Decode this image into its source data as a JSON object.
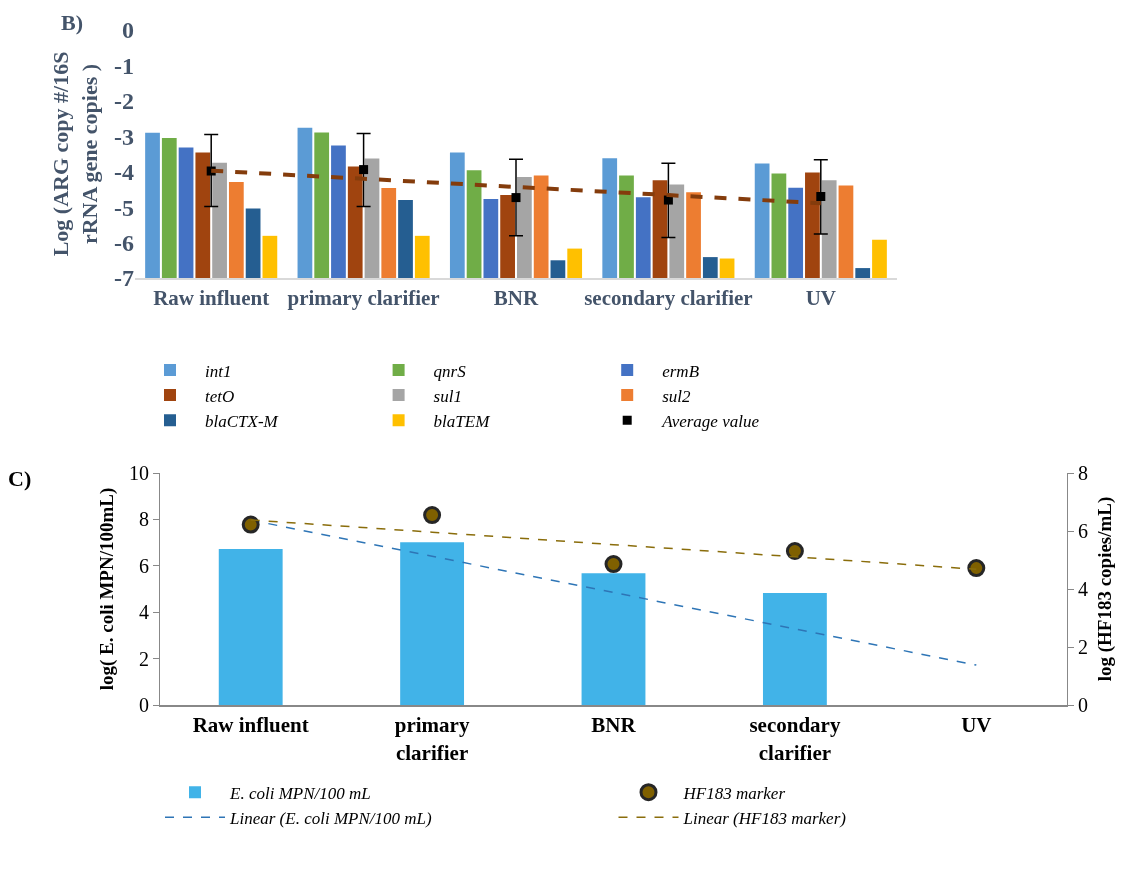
{
  "chart_data": [
    {
      "type": "bar",
      "annotations": [
        "B)"
      ],
      "ylabel": "Log (ARG copy #/16S rRNA gene copies )",
      "categories": [
        "Raw influent",
        "primary clarifier",
        "BNR",
        "secondary clarifier",
        "UV"
      ],
      "ylim": [
        -7,
        0
      ],
      "yticks": [
        -7,
        -6,
        -5,
        -4,
        -3,
        -2,
        -1,
        0
      ],
      "legend": "bottom",
      "series": [
        {
          "name": "int1",
          "color": "#5b9bd5",
          "base": [
            -7,
            -7,
            -7,
            -7,
            -7
          ],
          "values": [
            4.1,
            4.24,
            3.54,
            3.38,
            3.23
          ]
        },
        {
          "name": "qnrS",
          "color": "#70ad47",
          "base": [
            -7,
            -7,
            -7,
            -7,
            -7
          ],
          "values": [
            3.95,
            4.11,
            3.04,
            2.89,
            2.95
          ]
        },
        {
          "name": "ermB",
          "color": "#4472c4",
          "base": [
            -7,
            -7,
            -7,
            -7,
            -7
          ],
          "values": [
            3.68,
            3.74,
            2.23,
            2.28,
            2.55
          ]
        },
        {
          "name": "tetO",
          "color": "#a0440f",
          "base": [
            -7,
            -7,
            -7,
            -7,
            -7
          ],
          "values": [
            3.54,
            3.15,
            2.34,
            2.76,
            2.98
          ]
        },
        {
          "name": "sul1",
          "color": "#a5a5a5",
          "base": [
            -7,
            -7,
            -7,
            -7,
            -7
          ],
          "values": [
            3.25,
            3.37,
            2.85,
            2.64,
            2.76
          ]
        },
        {
          "name": "sul2",
          "color": "#ed7d31",
          "base": [
            -7,
            -7,
            -7,
            -7,
            -7
          ],
          "values": [
            2.71,
            2.54,
            2.89,
            2.42,
            2.61
          ]
        },
        {
          "name": "blaCTX-M",
          "color": "#255e91",
          "base": [
            -7,
            -7,
            -7,
            -7,
            -7
          ],
          "values": [
            1.96,
            2.2,
            0.5,
            0.59,
            0.28
          ]
        },
        {
          "name": "blaTEM",
          "color": "#ffc000",
          "base": [
            -7,
            -7,
            -7,
            -7,
            -7
          ],
          "values": [
            1.19,
            1.19,
            0.83,
            0.55,
            1.08
          ]
        },
        {
          "name": "Average value",
          "type": "scatter",
          "color": "#000000",
          "values": [
            -3.98,
            -3.94,
            -4.73,
            -4.8,
            -4.7
          ],
          "errors": [
            [
              -4.98,
              -2.95
            ],
            [
              -4.98,
              -2.92
            ],
            [
              -5.81,
              -3.65
            ],
            [
              -5.86,
              -3.76
            ],
            [
              -5.76,
              -3.66
            ]
          ]
        },
        {
          "type": "line",
          "line_style": "dashed",
          "color": "#843c0c",
          "values": [
            -3.97,
            -4.2,
            -4.43,
            -4.66,
            -4.89
          ]
        }
      ]
    },
    {
      "type": "bar",
      "annotations": [
        "C)"
      ],
      "ylabel": "log( E. coli MPN/100mL)",
      "y2label": "log (HF183 copies/mL)",
      "categories": [
        "Raw influent",
        "primary clarifier",
        "BNR",
        "secondary clarifier",
        "UV"
      ],
      "ylim": [
        0,
        10
      ],
      "yticks": [
        0,
        2,
        4,
        6,
        8,
        10
      ],
      "y2lim": [
        0,
        8
      ],
      "y2ticks": [
        0,
        2,
        4,
        6,
        8
      ],
      "legend": "bottom",
      "series": [
        {
          "name": "E. coli MPN/100 mL",
          "color": "#41b3e8",
          "values": [
            6.72,
            7.01,
            5.68,
            4.83,
            null
          ]
        },
        {
          "name": "HF183 marker",
          "type": "scatter",
          "marker": "circle",
          "axis": "y2",
          "color": "#7f6000",
          "values": [
            6.22,
            6.55,
            4.86,
            5.31,
            4.72
          ]
        },
        {
          "name": "Linear (E. coli MPN/100 mL)",
          "type": "line",
          "line_style": "dashed",
          "color": "#2e75b6",
          "values": [
            7.97,
            6.41,
            4.85,
            3.28,
            1.72
          ]
        },
        {
          "name": "Linear (HF183 marker)",
          "type": "line",
          "line_style": "dashed",
          "axis": "y2",
          "color": "#8a6d0b",
          "values": [
            6.38,
            5.96,
            5.53,
            5.11,
            4.68
          ]
        }
      ]
    }
  ]
}
